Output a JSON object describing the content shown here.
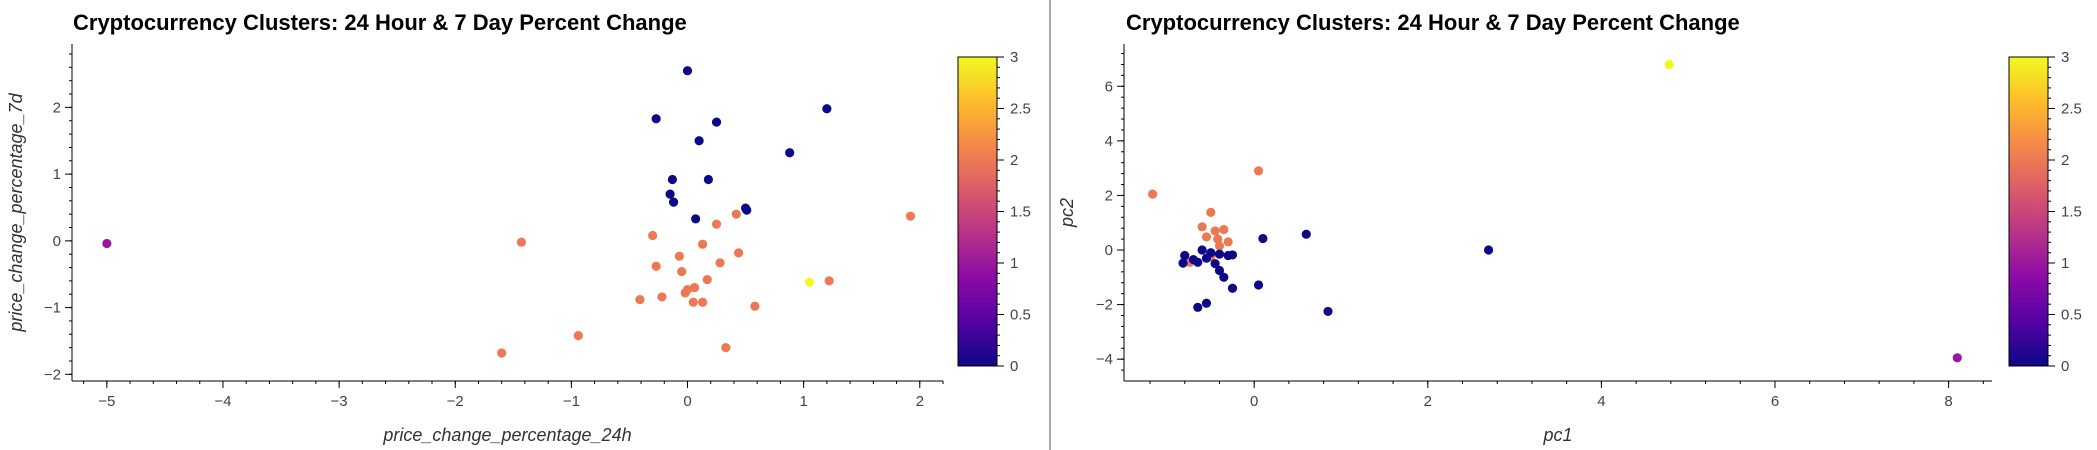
{
  "colors": {
    "colormap": [
      "#0d0887",
      "#5302a3",
      "#8b0aa5",
      "#b83289",
      "#db5c68",
      "#f48849",
      "#febd2a",
      "#f0f921"
    ],
    "axis": "#000000",
    "tick_label": "#444444",
    "title": "#000000"
  },
  "chart_data": [
    {
      "type": "scatter",
      "title": "Cryptocurrency Clusters: 24 Hour & 7 Day Percent Change",
      "xlabel": "price_change_percentage_24h",
      "ylabel": "price_change_percentage_7d",
      "xlim": [
        -5.3,
        2.2
      ],
      "ylim": [
        -2.1,
        2.95
      ],
      "xticks": [
        -5,
        -4,
        -3,
        -2,
        -1,
        0,
        1,
        2
      ],
      "yticks": [
        -2,
        -1,
        0,
        1,
        2
      ],
      "colorbar": {
        "min": 0,
        "max": 3,
        "ticks": [
          0,
          0.5,
          1,
          1.5,
          2,
          2.5,
          3
        ]
      },
      "grid": false,
      "points": [
        {
          "x": 0.0,
          "y": 2.55,
          "cluster": 0
        },
        {
          "x": 1.2,
          "y": 1.98,
          "cluster": 0
        },
        {
          "x": -0.27,
          "y": 1.83,
          "cluster": 0
        },
        {
          "x": 0.25,
          "y": 1.78,
          "cluster": 0
        },
        {
          "x": 0.1,
          "y": 1.5,
          "cluster": 0
        },
        {
          "x": 0.88,
          "y": 1.32,
          "cluster": 0
        },
        {
          "x": -0.13,
          "y": 0.92,
          "cluster": 0
        },
        {
          "x": 0.18,
          "y": 0.92,
          "cluster": 0
        },
        {
          "x": -0.15,
          "y": 0.7,
          "cluster": 0
        },
        {
          "x": -0.12,
          "y": 0.58,
          "cluster": 0
        },
        {
          "x": 0.5,
          "y": 0.49,
          "cluster": 0
        },
        {
          "x": 0.51,
          "y": 0.46,
          "cluster": 0
        },
        {
          "x": 0.07,
          "y": 0.33,
          "cluster": 0
        },
        {
          "x": -5.0,
          "y": -0.04,
          "cluster": 1
        },
        {
          "x": 1.05,
          "y": -0.62,
          "cluster": 3
        },
        {
          "x": 1.92,
          "y": 0.37,
          "cluster": 2
        },
        {
          "x": 0.42,
          "y": 0.4,
          "cluster": 2
        },
        {
          "x": 0.25,
          "y": 0.25,
          "cluster": 2
        },
        {
          "x": -0.3,
          "y": 0.08,
          "cluster": 2
        },
        {
          "x": 0.13,
          "y": -0.05,
          "cluster": 2
        },
        {
          "x": -1.43,
          "y": -0.02,
          "cluster": 2
        },
        {
          "x": -0.07,
          "y": -0.23,
          "cluster": 2
        },
        {
          "x": 0.44,
          "y": -0.18,
          "cluster": 2
        },
        {
          "x": -0.27,
          "y": -0.38,
          "cluster": 2
        },
        {
          "x": 0.28,
          "y": -0.33,
          "cluster": 2
        },
        {
          "x": -0.05,
          "y": -0.46,
          "cluster": 2
        },
        {
          "x": 0.17,
          "y": -0.58,
          "cluster": 2
        },
        {
          "x": 0.06,
          "y": -0.7,
          "cluster": 2
        },
        {
          "x": 0.0,
          "y": -0.73,
          "cluster": 2
        },
        {
          "x": -0.02,
          "y": -0.78,
          "cluster": 2
        },
        {
          "x": 1.22,
          "y": -0.6,
          "cluster": 2
        },
        {
          "x": -0.22,
          "y": -0.84,
          "cluster": 2
        },
        {
          "x": -0.41,
          "y": -0.88,
          "cluster": 2
        },
        {
          "x": 0.05,
          "y": -0.92,
          "cluster": 2
        },
        {
          "x": 0.13,
          "y": -0.92,
          "cluster": 2
        },
        {
          "x": 0.58,
          "y": -0.98,
          "cluster": 2
        },
        {
          "x": -0.94,
          "y": -1.42,
          "cluster": 2
        },
        {
          "x": 0.33,
          "y": -1.6,
          "cluster": 2
        },
        {
          "x": -1.6,
          "y": -1.68,
          "cluster": 2
        }
      ]
    },
    {
      "type": "scatter",
      "title": "Cryptocurrency Clusters: 24 Hour & 7 Day Percent Change",
      "xlabel": "pc1",
      "ylabel": "pc2",
      "xlim": [
        -1.5,
        8.5
      ],
      "ylim": [
        -4.8,
        7.55
      ],
      "xticks": [
        0,
        2,
        4,
        6,
        8
      ],
      "yticks": [
        -4,
        -2,
        0,
        2,
        4,
        6
      ],
      "colorbar": {
        "min": 0,
        "max": 3,
        "ticks": [
          0,
          0.5,
          1,
          1.5,
          2,
          2.5,
          3
        ]
      },
      "grid": false,
      "points": [
        {
          "x": 4.78,
          "y": 6.8,
          "cluster": 3
        },
        {
          "x": 8.1,
          "y": -3.95,
          "cluster": 1
        },
        {
          "x": 0.05,
          "y": 2.9,
          "cluster": 2
        },
        {
          "x": -1.17,
          "y": 2.05,
          "cluster": 2
        },
        {
          "x": -0.5,
          "y": 1.38,
          "cluster": 2
        },
        {
          "x": -0.6,
          "y": 0.85,
          "cluster": 2
        },
        {
          "x": -0.35,
          "y": 0.75,
          "cluster": 2
        },
        {
          "x": -0.45,
          "y": 0.7,
          "cluster": 2
        },
        {
          "x": -0.55,
          "y": 0.48,
          "cluster": 2
        },
        {
          "x": -0.42,
          "y": 0.4,
          "cluster": 2
        },
        {
          "x": -0.4,
          "y": 0.15,
          "cluster": 2
        },
        {
          "x": -0.3,
          "y": 0.3,
          "cluster": 2
        },
        {
          "x": -0.74,
          "y": -0.45,
          "cluster": 2
        },
        {
          "x": -0.5,
          "y": -0.25,
          "cluster": 2
        },
        {
          "x": 0.6,
          "y": 0.58,
          "cluster": 0
        },
        {
          "x": 0.1,
          "y": 0.42,
          "cluster": 0
        },
        {
          "x": 2.7,
          "y": 0.0,
          "cluster": 0
        },
        {
          "x": -0.6,
          "y": 0.0,
          "cluster": 0
        },
        {
          "x": -0.5,
          "y": -0.1,
          "cluster": 0
        },
        {
          "x": -0.4,
          "y": -0.15,
          "cluster": 0
        },
        {
          "x": -0.3,
          "y": -0.2,
          "cluster": 0
        },
        {
          "x": -0.25,
          "y": -0.18,
          "cluster": 0
        },
        {
          "x": -0.8,
          "y": -0.2,
          "cluster": 0
        },
        {
          "x": -0.7,
          "y": -0.35,
          "cluster": 0
        },
        {
          "x": -0.65,
          "y": -0.45,
          "cluster": 0
        },
        {
          "x": -0.55,
          "y": -0.3,
          "cluster": 0
        },
        {
          "x": -0.45,
          "y": -0.5,
          "cluster": 0
        },
        {
          "x": -0.82,
          "y": -0.48,
          "cluster": 0
        },
        {
          "x": -0.4,
          "y": -0.75,
          "cluster": 0
        },
        {
          "x": -0.35,
          "y": -1.0,
          "cluster": 0
        },
        {
          "x": -0.25,
          "y": -1.4,
          "cluster": 0
        },
        {
          "x": 0.05,
          "y": -1.28,
          "cluster": 0
        },
        {
          "x": -0.55,
          "y": -1.95,
          "cluster": 0
        },
        {
          "x": -0.65,
          "y": -2.1,
          "cluster": 0
        },
        {
          "x": 0.85,
          "y": -2.25,
          "cluster": 0
        }
      ]
    }
  ]
}
